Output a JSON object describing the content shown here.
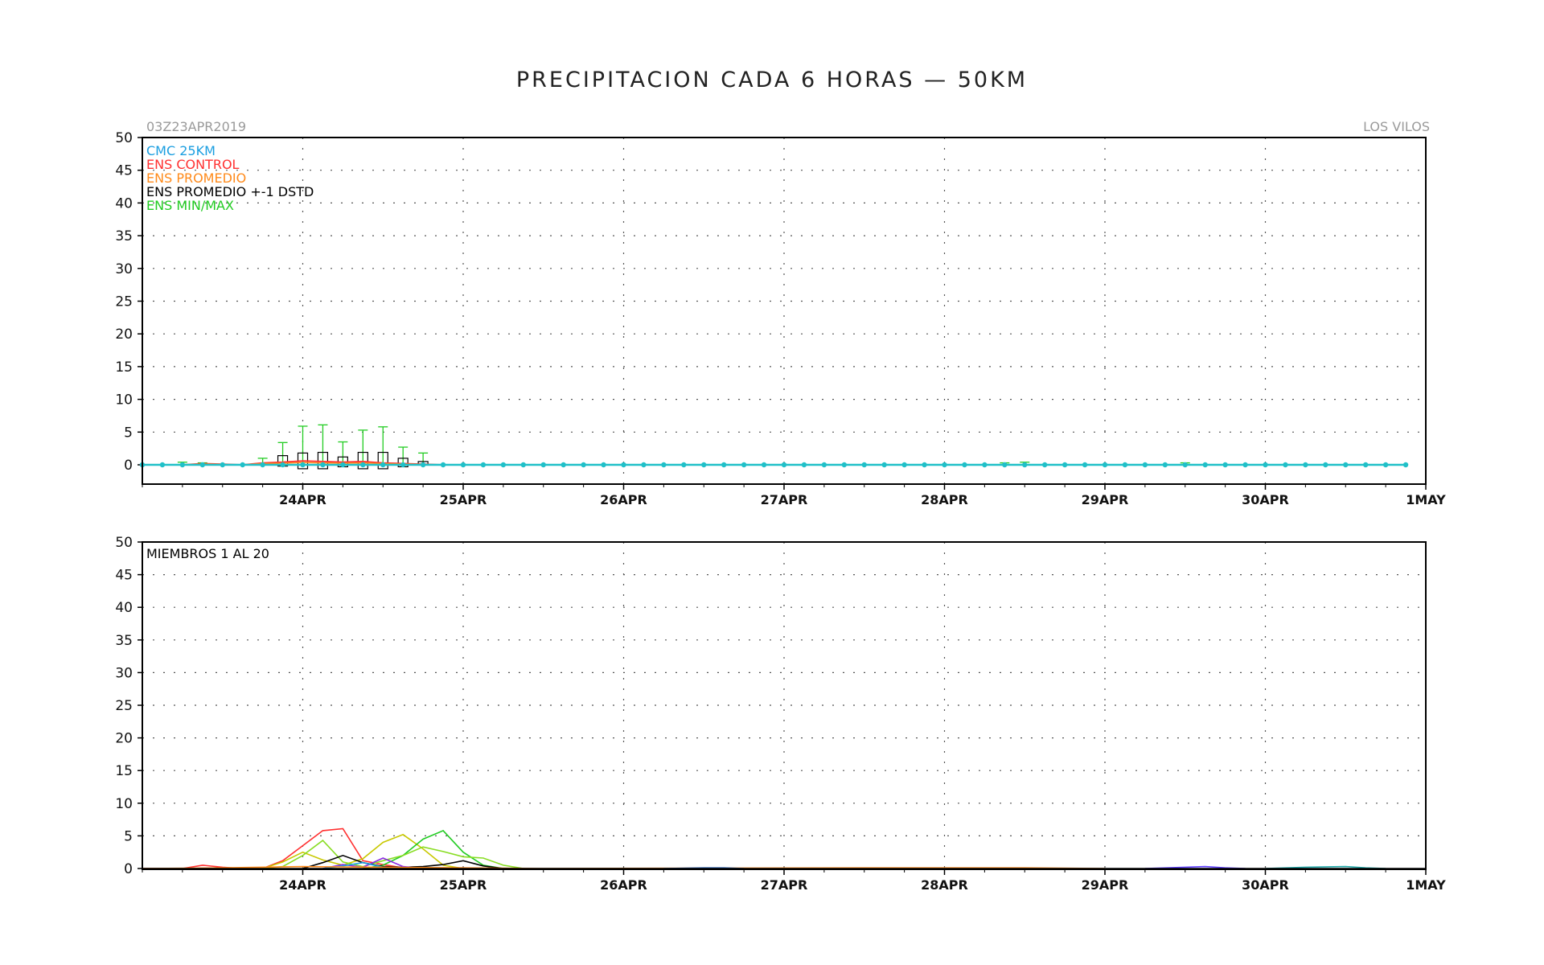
{
  "title": "PRECIPITACION CADA 6 HORAS — 50KM",
  "init_time": "03Z23APR2019",
  "location": "LOS VILOS",
  "colors": {
    "cmc": "#1a9ee0",
    "control": "#ff3030",
    "promedio": "#ff8a1a",
    "std": "#000000",
    "minmax": "#22cc22",
    "cyan_line": "#20c0c8"
  },
  "chart_data": [
    {
      "type": "line",
      "panel": "top",
      "y_ticks": [
        "50",
        "45",
        "40",
        "35",
        "30",
        "25",
        "20",
        "15",
        "10",
        "5",
        "0"
      ],
      "ylim": [
        -3,
        50
      ],
      "xlim": [
        0,
        8
      ],
      "x_ticks": [
        "24APR",
        "25APR",
        "26APR",
        "27APR",
        "28APR",
        "29APR",
        "30APR",
        "1MAY"
      ],
      "grid": true,
      "legend_position": "top-left",
      "legend": [
        {
          "label": "CMC 25KM",
          "color": "#1a9ee0"
        },
        {
          "label": "ENS CONTROL",
          "color": "#ff3030"
        },
        {
          "label": "ENS PROMEDIO",
          "color": "#ff8a1a"
        },
        {
          "label": "ENS PROMEDIO +-1 DSTD",
          "color": "#000000"
        },
        {
          "label": "ENS MIN/MAX",
          "color": "#22cc22"
        }
      ],
      "cmc_values": [
        0,
        0,
        0,
        0,
        0,
        0,
        0,
        0,
        0,
        0,
        0,
        0,
        0,
        0,
        0,
        0,
        0,
        0,
        0,
        0,
        0,
        0,
        0,
        0,
        0,
        0,
        0,
        0,
        0,
        0,
        0,
        0,
        0,
        0,
        0,
        0,
        0,
        0,
        0,
        0,
        0,
        0,
        0,
        0,
        0,
        0,
        0,
        0,
        0,
        0,
        0,
        0,
        0,
        0,
        0,
        0,
        0,
        0,
        0,
        0,
        0,
        0,
        0,
        0
      ],
      "control_values": [
        0,
        0,
        0,
        0.2,
        0.1,
        0,
        0.3,
        0.4,
        0.6,
        0.5,
        0.4,
        0.5,
        0.3,
        0.2,
        0.1,
        0,
        0,
        0,
        0,
        0,
        0,
        0,
        0,
        0,
        0,
        0,
        0,
        0,
        0,
        0,
        0,
        0,
        0,
        0,
        0,
        0,
        0,
        0,
        0,
        0,
        0,
        0,
        0,
        0,
        0,
        0,
        0,
        0,
        0,
        0,
        0,
        0,
        0,
        0,
        0,
        0,
        0,
        0,
        0,
        0,
        0,
        0,
        0,
        0
      ],
      "boxes": [
        {
          "t": 0.875,
          "low": -0.2,
          "high": 1.4
        },
        {
          "t": 1.0,
          "low": -0.6,
          "high": 1.8
        },
        {
          "t": 1.125,
          "low": -0.6,
          "high": 1.9
        },
        {
          "t": 1.25,
          "low": -0.3,
          "high": 1.2
        },
        {
          "t": 1.375,
          "low": -0.6,
          "high": 1.9
        },
        {
          "t": 1.5,
          "low": -0.6,
          "high": 1.9
        },
        {
          "t": 1.625,
          "low": -0.3,
          "high": 1.0
        },
        {
          "t": 1.75,
          "low": 0.0,
          "high": 0.5
        }
      ],
      "whiskers_max": [
        {
          "t": 0.75,
          "max": 1.0
        },
        {
          "t": 0.875,
          "max": 3.4
        },
        {
          "t": 1.0,
          "max": 5.9
        },
        {
          "t": 1.125,
          "max": 6.1
        },
        {
          "t": 1.25,
          "max": 3.5
        },
        {
          "t": 1.375,
          "max": 5.3
        },
        {
          "t": 1.5,
          "max": 5.8
        },
        {
          "t": 1.625,
          "max": 2.7
        },
        {
          "t": 1.75,
          "max": 1.8
        },
        {
          "t": 0.25,
          "max": 0.4
        },
        {
          "t": 0.375,
          "max": 0.3
        },
        {
          "t": 5.375,
          "max": 0.3
        },
        {
          "t": 5.5,
          "max": 0.4
        },
        {
          "t": 6.5,
          "max": 0.3
        }
      ]
    },
    {
      "type": "line",
      "panel": "bottom",
      "label": "MIEMBROS 1 AL 20",
      "y_ticks": [
        "50",
        "45",
        "40",
        "35",
        "30",
        "25",
        "20",
        "15",
        "10",
        "5",
        "0"
      ],
      "ylim": [
        0,
        50
      ],
      "xlim": [
        0,
        8
      ],
      "x_ticks": [
        "24APR",
        "25APR",
        "26APR",
        "27APR",
        "28APR",
        "29APR",
        "30APR",
        "1MAY"
      ],
      "grid": true,
      "series": [
        {
          "color": "#ff3030",
          "points": [
            [
              0,
              0
            ],
            [
              0.25,
              0
            ],
            [
              0.375,
              0.5
            ],
            [
              0.5,
              0.2
            ],
            [
              0.625,
              0
            ],
            [
              0.75,
              0
            ],
            [
              0.875,
              1.2
            ],
            [
              1.0,
              3.5
            ],
            [
              1.125,
              5.8
            ],
            [
              1.25,
              6.1
            ],
            [
              1.375,
              1.2
            ],
            [
              1.5,
              0.6
            ],
            [
              1.625,
              0.1
            ],
            [
              1.75,
              0
            ],
            [
              2,
              0
            ]
          ]
        },
        {
          "color": "#c8c800",
          "points": [
            [
              0.625,
              0
            ],
            [
              0.75,
              0
            ],
            [
              0.875,
              1.0
            ],
            [
              1.0,
              2.5
            ],
            [
              1.125,
              1.3
            ],
            [
              1.25,
              0.5
            ],
            [
              1.375,
              1.5
            ],
            [
              1.5,
              4.0
            ],
            [
              1.625,
              5.2
            ],
            [
              1.75,
              3.0
            ],
            [
              1.875,
              0.5
            ],
            [
              2,
              0
            ]
          ]
        },
        {
          "color": "#22cc22",
          "points": [
            [
              1.375,
              0
            ],
            [
              1.5,
              0.5
            ],
            [
              1.625,
              2.0
            ],
            [
              1.75,
              4.5
            ],
            [
              1.875,
              5.8
            ],
            [
              2.0,
              2.5
            ],
            [
              2.125,
              0.5
            ],
            [
              2.25,
              0
            ]
          ]
        },
        {
          "color": "#88dd22",
          "points": [
            [
              0.75,
              0
            ],
            [
              0.875,
              0.3
            ],
            [
              1.0,
              2.0
            ],
            [
              1.125,
              4.3
            ],
            [
              1.25,
              1.0
            ],
            [
              1.375,
              0.3
            ],
            [
              1.5,
              1.2
            ],
            [
              1.625,
              2.0
            ],
            [
              1.75,
              3.3
            ],
            [
              1.875,
              2.6
            ],
            [
              2.0,
              1.8
            ],
            [
              2.125,
              1.6
            ],
            [
              2.25,
              0.5
            ],
            [
              2.375,
              0
            ]
          ]
        },
        {
          "color": "#000000",
          "points": [
            [
              1.0,
              0
            ],
            [
              1.125,
              0.9
            ],
            [
              1.25,
              2.0
            ],
            [
              1.375,
              0.9
            ],
            [
              1.5,
              0.3
            ],
            [
              1.625,
              0.2
            ],
            [
              1.75,
              0.3
            ],
            [
              1.875,
              0.6
            ],
            [
              2.0,
              1.2
            ],
            [
              2.125,
              0.4
            ],
            [
              2.25,
              0
            ]
          ]
        },
        {
          "color": "#8a2be2",
          "points": [
            [
              1.125,
              0
            ],
            [
              1.25,
              0.6
            ],
            [
              1.375,
              0.2
            ],
            [
              1.5,
              1.6
            ],
            [
              1.625,
              0.3
            ],
            [
              1.75,
              0
            ]
          ]
        },
        {
          "color": "#1a9ee0",
          "points": [
            [
              1.125,
              0
            ],
            [
              1.25,
              0.4
            ],
            [
              1.375,
              0.9
            ],
            [
              1.5,
              0.2
            ],
            [
              1.625,
              0
            ]
          ]
        },
        {
          "color": "#ff8a1a",
          "points": [
            [
              0,
              0
            ],
            [
              0.5,
              0.1
            ],
            [
              1.0,
              0.3
            ],
            [
              1.5,
              0.2
            ],
            [
              2.0,
              0.1
            ],
            [
              2.5,
              0
            ],
            [
              4.5,
              0.1
            ],
            [
              5.5,
              0.1
            ],
            [
              6,
              0
            ]
          ]
        },
        {
          "color": "#6040ff",
          "points": [
            [
              6.25,
              0
            ],
            [
              6.5,
              0.2
            ],
            [
              6.625,
              0.3
            ],
            [
              6.75,
              0.1
            ],
            [
              6.875,
              0
            ]
          ]
        },
        {
          "color": "#20a8a8",
          "points": [
            [
              7.0,
              0
            ],
            [
              7.25,
              0.2
            ],
            [
              7.5,
              0.3
            ],
            [
              7.625,
              0.1
            ],
            [
              7.75,
              0
            ]
          ]
        },
        {
          "color": "#2a60b0",
          "points": [
            [
              3.25,
              0
            ],
            [
              3.5,
              0.1
            ],
            [
              3.625,
              0.1
            ],
            [
              3.75,
              0
            ]
          ]
        }
      ]
    }
  ]
}
